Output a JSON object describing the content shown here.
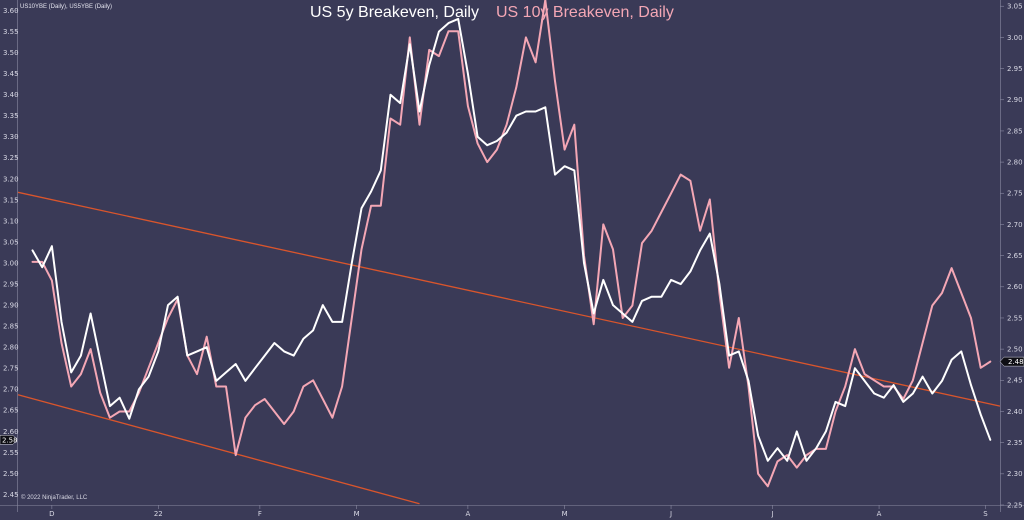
{
  "header": {
    "instruments": "US10YBE (Daily), US5YBE (Daily)"
  },
  "copyright": "© 2022 NinjaTrader, LLC",
  "colors": {
    "background": "#3a3a57",
    "us5y": "#ffffff",
    "us10y": "#f4a7b5",
    "trend": "#d9552c",
    "text": "#d8d8e4"
  },
  "chart_data": {
    "type": "line",
    "title_left": "US 5y Breakeven, Daily",
    "title_right": "US 10y Breakeven, Daily",
    "xlabel": "",
    "ylabel": "",
    "x_ticks": [
      {
        "label": "D",
        "x": 4
      },
      {
        "label": "22",
        "x": 26
      },
      {
        "label": "F",
        "x": 47
      },
      {
        "label": "M",
        "x": 67
      },
      {
        "label": "A",
        "x": 90
      },
      {
        "label": "M",
        "x": 110
      },
      {
        "label": "J",
        "x": 132
      },
      {
        "label": "J",
        "x": 153
      },
      {
        "label": "A",
        "x": 175
      },
      {
        "label": "S",
        "x": 197
      }
    ],
    "x_range": [
      -3,
      200
    ],
    "left_axis": {
      "ylim": [
        2.425,
        3.625
      ],
      "ticks": [
        "2.45",
        "2.50",
        "2.55",
        "2.60",
        "2.65",
        "2.70",
        "2.75",
        "2.80",
        "2.85",
        "2.90",
        "2.95",
        "3.00",
        "3.05",
        "3.10",
        "3.15",
        "3.20",
        "3.25",
        "3.30",
        "3.35",
        "3.40",
        "3.45",
        "3.50",
        "3.55",
        "3.60"
      ],
      "last_value_marker": "2.58"
    },
    "right_axis": {
      "ylim": [
        2.25,
        3.06
      ],
      "ticks": [
        "2.25",
        "2.30",
        "2.35",
        "2.40",
        "2.45",
        "2.50",
        "2.55",
        "2.60",
        "2.65",
        "2.70",
        "2.75",
        "2.80",
        "2.85",
        "2.90",
        "2.95",
        "3.00",
        "3.05"
      ],
      "last_value_marker": "2.48"
    },
    "series": [
      {
        "name": "US 5y Breakeven, Daily",
        "axis": "left",
        "x": [
          0,
          2,
          4,
          6,
          8,
          10,
          12,
          14,
          16,
          18,
          20,
          22,
          24,
          26,
          28,
          30,
          32,
          34,
          36,
          38,
          40,
          42,
          44,
          46,
          48,
          50,
          52,
          54,
          56,
          58,
          60,
          62,
          64,
          66,
          68,
          70,
          72,
          74,
          76,
          78,
          80,
          82,
          84,
          86,
          88,
          90,
          92,
          94,
          96,
          98,
          100,
          102,
          104,
          106,
          108,
          110,
          112,
          114,
          116,
          118,
          120,
          122,
          124,
          126,
          128,
          130,
          132,
          134,
          136,
          138,
          140,
          142,
          144,
          146,
          148,
          150,
          152,
          154,
          156,
          158,
          160,
          162,
          164,
          166,
          168,
          170,
          172,
          174,
          176,
          178,
          180,
          182,
          184,
          186,
          188,
          190,
          192,
          194,
          196,
          198
        ],
        "values": [
          3.03,
          2.99,
          3.04,
          2.86,
          2.74,
          2.78,
          2.88,
          2.77,
          2.66,
          2.68,
          2.63,
          2.7,
          2.73,
          2.79,
          2.9,
          2.92,
          2.78,
          2.79,
          2.8,
          2.72,
          2.74,
          2.76,
          2.72,
          2.75,
          2.78,
          2.81,
          2.79,
          2.78,
          2.82,
          2.84,
          2.9,
          2.86,
          2.86,
          3.0,
          3.13,
          3.17,
          3.22,
          3.4,
          3.38,
          3.52,
          3.36,
          3.47,
          3.55,
          3.57,
          3.58,
          3.45,
          3.3,
          3.28,
          3.29,
          3.31,
          3.35,
          3.36,
          3.36,
          3.37,
          3.21,
          3.23,
          3.22,
          3.0,
          2.88,
          2.96,
          2.9,
          2.88,
          2.86,
          2.91,
          2.92,
          2.92,
          2.96,
          2.95,
          2.98,
          3.03,
          3.07,
          2.95,
          2.78,
          2.79,
          2.72,
          2.59,
          2.53,
          2.56,
          2.53,
          2.6,
          2.53,
          2.56,
          2.6,
          2.67,
          2.66,
          2.75,
          2.72,
          2.69,
          2.68,
          2.71,
          2.67,
          2.69,
          2.73,
          2.69,
          2.72,
          2.77,
          2.79,
          2.71,
          2.64,
          2.58
        ]
      },
      {
        "name": "US 10y Breakeven, Daily",
        "axis": "right",
        "x": [
          0,
          2,
          4,
          6,
          8,
          10,
          12,
          14,
          16,
          18,
          20,
          22,
          24,
          26,
          28,
          30,
          32,
          34,
          36,
          38,
          40,
          42,
          44,
          46,
          48,
          50,
          52,
          54,
          56,
          58,
          60,
          62,
          64,
          66,
          68,
          70,
          72,
          74,
          76,
          78,
          80,
          82,
          84,
          86,
          88,
          90,
          92,
          94,
          96,
          98,
          100,
          102,
          104,
          106,
          108,
          110,
          112,
          114,
          116,
          118,
          120,
          122,
          124,
          126,
          128,
          130,
          132,
          134,
          136,
          138,
          140,
          142,
          144,
          146,
          148,
          150,
          152,
          154,
          156,
          158,
          160,
          162,
          164,
          166,
          168,
          170,
          172,
          174,
          176,
          178,
          180,
          182,
          184,
          186,
          188,
          190,
          192,
          194,
          196,
          198
        ],
        "values": [
          2.64,
          2.64,
          2.61,
          2.51,
          2.44,
          2.46,
          2.5,
          2.43,
          2.39,
          2.4,
          2.4,
          2.43,
          2.47,
          2.51,
          2.55,
          2.58,
          2.49,
          2.46,
          2.52,
          2.44,
          2.44,
          2.33,
          2.39,
          2.41,
          2.42,
          2.4,
          2.38,
          2.4,
          2.44,
          2.45,
          2.42,
          2.39,
          2.44,
          2.55,
          2.66,
          2.73,
          2.73,
          2.87,
          2.86,
          3.0,
          2.86,
          2.98,
          2.97,
          3.01,
          3.01,
          2.89,
          2.83,
          2.8,
          2.82,
          2.86,
          2.92,
          3.0,
          2.96,
          3.06,
          2.93,
          2.82,
          2.86,
          2.65,
          2.54,
          2.7,
          2.66,
          2.55,
          2.57,
          2.67,
          2.69,
          2.72,
          2.75,
          2.78,
          2.77,
          2.69,
          2.74,
          2.59,
          2.47,
          2.55,
          2.44,
          2.3,
          2.28,
          2.32,
          2.33,
          2.31,
          2.33,
          2.34,
          2.34,
          2.4,
          2.44,
          2.5,
          2.46,
          2.45,
          2.44,
          2.44,
          2.42,
          2.45,
          2.51,
          2.57,
          2.59,
          2.63,
          2.59,
          2.55,
          2.47,
          2.48
        ]
      }
    ],
    "trendlines": [
      {
        "name": "upper channel line",
        "axis": "left",
        "points": [
          [
            -3,
            3.168
          ],
          [
            200,
            2.66
          ]
        ]
      },
      {
        "name": "lower channel line",
        "axis": "left",
        "points": [
          [
            -3,
            2.687
          ],
          [
            80,
            2.428
          ]
        ]
      }
    ]
  }
}
